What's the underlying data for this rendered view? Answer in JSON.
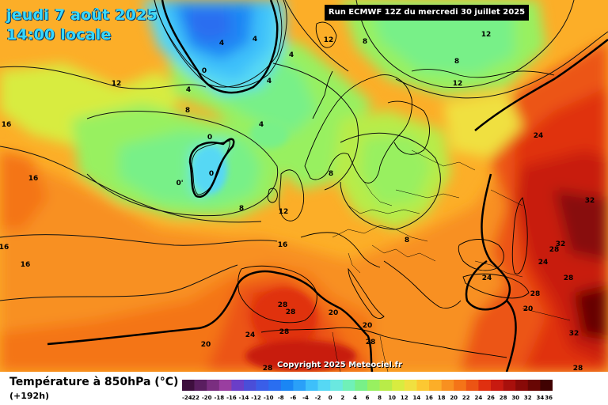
{
  "header": {
    "date": "jeudi 7 août 2025",
    "time": "14:00 locale",
    "run": "Run ECMWF 12Z du mercredi 30 juillet 2025"
  },
  "copyright": "Copyright 2025 Meteociel.fr",
  "footer": {
    "variable": "Température à 850hPa (°C)",
    "lead": "(+192h)"
  },
  "legend": {
    "ticks": [
      "-24",
      "-22",
      "-20",
      "-18",
      "-16",
      "-14",
      "-12",
      "-10",
      "-8",
      "-6",
      "-4",
      "-2",
      "0",
      "2",
      "4",
      "6",
      "8",
      "10",
      "12",
      "14",
      "16",
      "18",
      "20",
      "22",
      "24",
      "26",
      "28",
      "30",
      "32",
      "34",
      "36"
    ],
    "colors": [
      "#3e0f3e",
      "#5a1e60",
      "#7a2e80",
      "#9a3ea0",
      "#6a3ec8",
      "#4a4ed8",
      "#3a5ee8",
      "#2a6ef0",
      "#1a86f4",
      "#2aa0f8",
      "#3ec0fa",
      "#56d8f4",
      "#6ae8e0",
      "#70f0b8",
      "#78f088",
      "#98f060",
      "#b8ec48",
      "#d8ec40",
      "#f0e040",
      "#fcc832",
      "#fcae28",
      "#f89020",
      "#f47418",
      "#ec5414",
      "#e03010",
      "#c81a10",
      "#a8100c",
      "#880a08",
      "#680604",
      "#400202"
    ]
  },
  "contour_labels": [
    {
      "text": "4"
    },
    {
      "text": "0"
    },
    {
      "text": "4"
    },
    {
      "text": "4"
    },
    {
      "text": "4"
    },
    {
      "text": "8"
    },
    {
      "text": "12"
    },
    {
      "text": "8"
    },
    {
      "text": "8"
    },
    {
      "text": "12"
    },
    {
      "text": "12"
    },
    {
      "text": "16"
    },
    {
      "text": "16"
    },
    {
      "text": "16"
    },
    {
      "text": "16"
    },
    {
      "text": "4"
    },
    {
      "text": "4"
    },
    {
      "text": "0"
    },
    {
      "text": "0"
    },
    {
      "text": "0'"
    },
    {
      "text": "8"
    },
    {
      "text": "8"
    },
    {
      "text": "12"
    },
    {
      "text": "8"
    },
    {
      "text": "12"
    },
    {
      "text": "16"
    },
    {
      "text": "24"
    },
    {
      "text": "32"
    },
    {
      "text": "32"
    },
    {
      "text": "28"
    },
    {
      "text": "24"
    },
    {
      "text": "24"
    },
    {
      "text": "28"
    },
    {
      "text": "28"
    },
    {
      "text": "28"
    },
    {
      "text": "20"
    },
    {
      "text": "32"
    },
    {
      "text": "28"
    },
    {
      "text": "28"
    },
    {
      "text": "28"
    },
    {
      "text": "28"
    },
    {
      "text": "20"
    },
    {
      "text": "20"
    },
    {
      "text": "24"
    },
    {
      "text": "20"
    },
    {
      "text": "28"
    }
  ]
}
